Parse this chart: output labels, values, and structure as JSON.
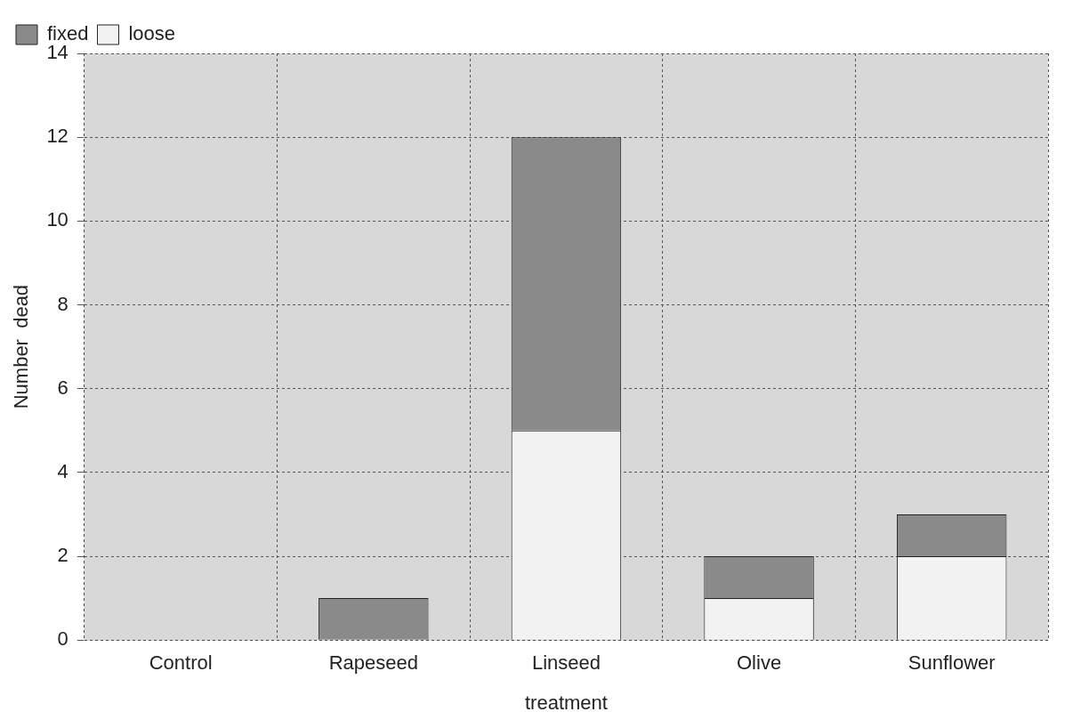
{
  "chart_data": {
    "type": "bar",
    "stacked": true,
    "xlabel": "treatment",
    "ylabel": "Number  dead",
    "categories": [
      "Control",
      "Rapeseed",
      "Linseed",
      "Olive",
      "Sunflower"
    ],
    "series": [
      {
        "name": "loose",
        "color": "#f2f2f2",
        "values": [
          0,
          0,
          5,
          1,
          2
        ]
      },
      {
        "name": "fixed",
        "color": "#8a8a8a",
        "values": [
          0,
          1,
          7,
          1,
          1
        ]
      }
    ],
    "ylim": [
      0,
      14
    ],
    "yticks": [
      0,
      2,
      4,
      6,
      8,
      10,
      12,
      14
    ],
    "grid": true,
    "legend": "top left"
  }
}
